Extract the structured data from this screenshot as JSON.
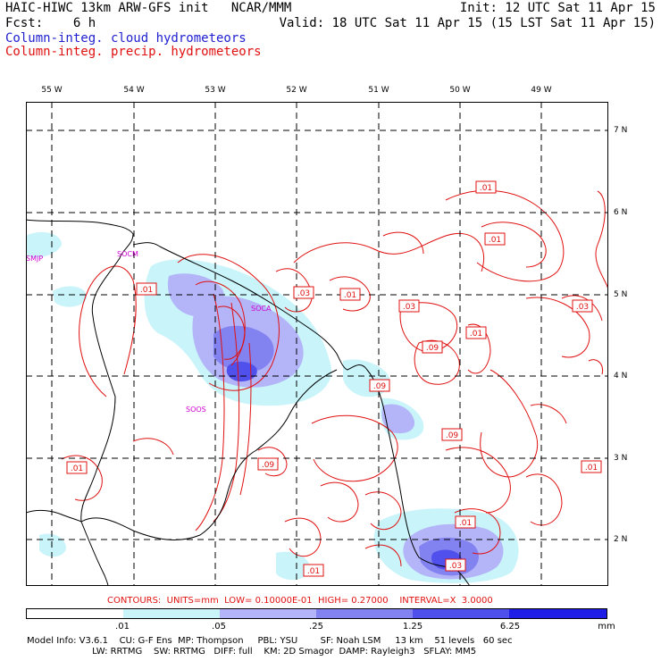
{
  "header": {
    "left1": "HAIC-HIWC 13km ARW-GFS init   NCAR/MMM",
    "left2": "Fcst:    6 h",
    "right1": "Init: 12 UTC Sat 11 Apr 15",
    "right2": "Valid: 18 UTC Sat 11 Apr 15 (15 LST Sat 11 Apr 15)",
    "legend_cloud": "Column-integ. cloud hydrometeors",
    "legend_precip": "Column-integ. precip. hydrometeors"
  },
  "longitudes": [
    "55 W",
    "54 W",
    "53 W",
    "52 W",
    "51 W",
    "50 W",
    "49 W"
  ],
  "latitudes": [
    "7 N",
    "6 N",
    "5 N",
    "4 N",
    "3 N",
    "2 N"
  ],
  "stations": [
    "SMJP",
    "SOCM",
    "SOCA",
    "SOOS"
  ],
  "contour_labels": [
    ".01",
    ".01",
    ".01",
    ".03",
    ".01",
    ".03",
    ".03",
    ".01",
    ".09",
    ".09",
    ".09",
    ".09",
    ".01",
    ".01",
    ".01",
    ".03",
    ".01"
  ],
  "contours_info": "CONTOURS:  UNITS=mm  LOW= 0.10000E-01  HIGH= 0.27000    INTERVAL=X  3.0000",
  "colorbar": {
    "labels": [
      ".01",
      ".05",
      ".25",
      "1.25",
      "6.25"
    ],
    "unit": "mm",
    "colors": [
      "#ffffff",
      "#c8f4fa",
      "#b4b4f8",
      "#8282f0",
      "#5050ec",
      "#1e1ee6"
    ]
  },
  "model_info": {
    "line1": "Model Info: V3.6.1    CU: G-F Ens  MP: Thompson     PBL: YSU        SF: Noah LSM     13 km    51 levels   60 sec",
    "line2": "                       LW: RRTMG    SW: RRTMG   DIFF: full    KM: 2D Smagor  DAMP: Rayleigh3   SFLAY: MM5"
  }
}
